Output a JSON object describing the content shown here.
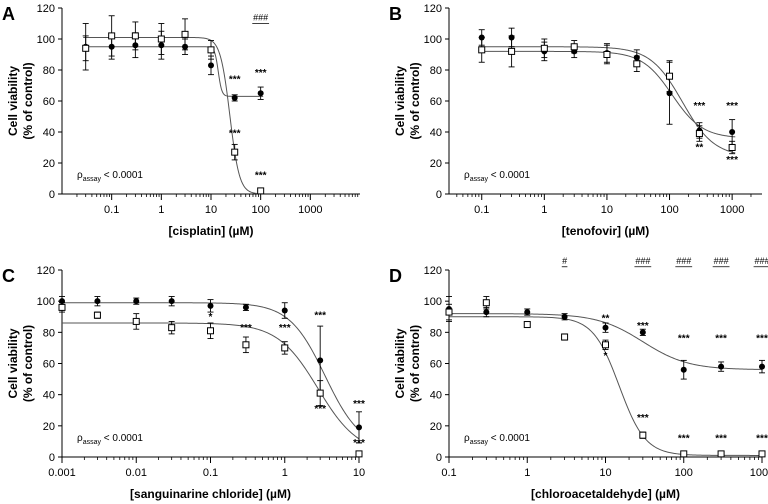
{
  "figure": {
    "panels": [
      {
        "letter": "A",
        "pvalue": {
          "rho": "ρ",
          "sub": "assay",
          "rest": " < 0.0001"
        },
        "chart_data": {
          "type": "scatter",
          "xscale": "log",
          "xlabel": "[cisplatin] (µM)",
          "ylabel_line1": "Cell viability",
          "ylabel_line2": "(% of control)",
          "xlim": [
            0.01,
            10000
          ],
          "ylim": [
            0,
            120
          ],
          "xticks": [
            0.1,
            1,
            10,
            100,
            1000
          ],
          "xtick_labels": [
            "0.1",
            "1",
            "10",
            "100",
            "1000"
          ],
          "yticks": [
            0,
            20,
            40,
            60,
            80,
            100,
            120
          ],
          "ytick_labels": [
            "0",
            "20",
            "40",
            "60",
            "80",
            "100",
            "120"
          ],
          "series": [
            {
              "name": "filled",
              "marker": "filled-circle",
              "x": [
                0.03,
                0.1,
                0.3,
                1,
                3,
                10,
                30,
                100
              ],
              "y": [
                95,
                95,
                96,
                96,
                95,
                83,
                62,
                65
              ],
              "err": [
                15,
                8,
                8,
                9,
                5,
                6,
                2,
                4
              ],
              "fit": {
                "top": 95,
                "bottom": 63,
                "ec50": 14,
                "hill": 12
              }
            },
            {
              "name": "open",
              "marker": "open-square",
              "x": [
                0.03,
                0.1,
                0.3,
                1,
                3,
                10,
                30,
                100
              ],
              "y": [
                94,
                102,
                102,
                100,
                103,
                93,
                27,
                2
              ],
              "err": [
                8,
                13,
                9,
                10,
                10,
                6,
                5,
                1
              ],
              "fit": {
                "top": 101,
                "bottom": 0,
                "ec50": 24,
                "hill": 4.5
              }
            }
          ],
          "annotations": [
            {
              "x": 30,
              "y": 72,
              "text": "***"
            },
            {
              "x": 100,
              "y": 76,
              "text": "***"
            },
            {
              "x": 30,
              "y": 37,
              "text": "***"
            },
            {
              "x": 100,
              "y": 10,
              "text": "***"
            },
            {
              "x": 100,
              "y": 112,
              "text": "###",
              "underline": true
            }
          ]
        }
      },
      {
        "letter": "B",
        "pvalue": {
          "rho": "ρ",
          "sub": "assay",
          "rest": " < 0.0001"
        },
        "chart_data": {
          "type": "scatter",
          "xscale": "log",
          "xlabel": "[tenofovir] (µM)",
          "ylabel_line1": "Cell viability",
          "ylabel_line2": "(% of control)",
          "xlim": [
            0.03,
            3000
          ],
          "ylim": [
            0,
            120
          ],
          "xticks": [
            0.1,
            1,
            10,
            100,
            1000
          ],
          "xtick_labels": [
            "0.1",
            "1",
            "10",
            "100",
            "1000"
          ],
          "yticks": [
            0,
            20,
            40,
            60,
            80,
            100,
            120
          ],
          "ytick_labels": [
            "0",
            "20",
            "40",
            "60",
            "80",
            "100",
            "120"
          ],
          "series": [
            {
              "name": "filled",
              "marker": "filled-circle",
              "x": [
                0.1,
                0.3,
                1,
                3,
                10,
                30,
                100,
                300,
                1000
              ],
              "y": [
                101,
                101,
                92,
                92,
                91,
                88,
                65,
                41,
                40
              ],
              "err": [
                5,
                6,
                6,
                4,
                6,
                5,
                20,
                5,
                8
              ],
              "fit": {
                "top": 92,
                "bottom": 36,
                "ec50": 110,
                "hill": 1.8
              }
            },
            {
              "name": "open",
              "marker": "open-square",
              "x": [
                0.1,
                0.3,
                1,
                3,
                10,
                30,
                100,
                300,
                1000
              ],
              "y": [
                93,
                92,
                94,
                95,
                90,
                84,
                76,
                39,
                30
              ],
              "err": [
                8,
                10,
                6,
                4,
                6,
                5,
                10,
                5,
                4
              ],
              "fit": {
                "top": 95,
                "bottom": 24,
                "ec50": 160,
                "hill": 1.7
              }
            }
          ],
          "annotations": [
            {
              "x": 300,
              "y": 55,
              "text": "***"
            },
            {
              "x": 1000,
              "y": 55,
              "text": "***"
            },
            {
              "x": 300,
              "y": 28,
              "text": "**"
            },
            {
              "x": 1000,
              "y": 20,
              "text": "***"
            }
          ]
        }
      },
      {
        "letter": "C",
        "pvalue": {
          "rho": "ρ",
          "sub": "assay",
          "rest": " < 0.0001"
        },
        "chart_data": {
          "type": "scatter",
          "xscale": "log",
          "xlabel": "[sanguinarine chloride] (µM)",
          "ylabel_line1": "Cell viability",
          "ylabel_line2": "(% of control)",
          "xlim": [
            0.001,
            10
          ],
          "ylim": [
            0,
            120
          ],
          "xticks": [
            0.001,
            0.01,
            0.1,
            1,
            10
          ],
          "xtick_labels": [
            "0.001",
            "0.01",
            "0.1",
            "1",
            "10"
          ],
          "yticks": [
            0,
            20,
            40,
            60,
            80,
            100,
            120
          ],
          "ytick_labels": [
            "0",
            "20",
            "40",
            "60",
            "80",
            "100",
            "120"
          ],
          "series": [
            {
              "name": "filled",
              "marker": "filled-circle",
              "x": [
                0.001,
                0.003,
                0.01,
                0.03,
                0.1,
                0.3,
                1,
                3,
                10
              ],
              "y": [
                100,
                100,
                100,
                100,
                97,
                96,
                94,
                62,
                19
              ],
              "err": [
                3,
                3,
                2,
                3,
                4,
                2,
                5,
                22,
                10
              ],
              "fit": {
                "top": 99,
                "bottom": 5,
                "ec50": 3.5,
                "hill": 1.8
              }
            },
            {
              "name": "open",
              "marker": "open-square",
              "x": [
                0.001,
                0.003,
                0.01,
                0.03,
                0.1,
                0.3,
                1,
                3,
                10
              ],
              "y": [
                96,
                91,
                87,
                83,
                81,
                72,
                70,
                41,
                2
              ],
              "err": [
                3,
                2,
                5,
                4,
                5,
                5,
                4,
                8,
                1
              ],
              "fit": {
                "top": 86,
                "bottom": 2,
                "ec50": 2.8,
                "hill": 1.6
              }
            }
          ],
          "annotations": [
            {
              "x": 0.1,
              "y": 88,
              "text": "*"
            },
            {
              "x": 0.3,
              "y": 81,
              "text": "***"
            },
            {
              "x": 1,
              "y": 81,
              "text": "***"
            },
            {
              "x": 3,
              "y": 89,
              "text": "***"
            },
            {
              "x": 3,
              "y": 29,
              "text": "***"
            },
            {
              "x": 10,
              "y": 32,
              "text": "***"
            },
            {
              "x": 10,
              "y": 7,
              "text": "***"
            }
          ]
        }
      },
      {
        "letter": "D",
        "pvalue": {
          "rho": "ρ",
          "sub": "assay",
          "rest": " < 0.0001"
        },
        "chart_data": {
          "type": "scatter",
          "xscale": "log",
          "xlabel": "[chloroacetaldehyde] (µM)",
          "ylabel_line1": "Cell viability",
          "ylabel_line2": "(% of control)",
          "xlim": [
            0.1,
            1000
          ],
          "ylim": [
            0,
            120
          ],
          "xticks": [
            0.1,
            1,
            10,
            100,
            1000
          ],
          "xtick_labels": [
            "0.1",
            "1",
            "10",
            "100",
            "1000"
          ],
          "yticks": [
            0,
            20,
            40,
            60,
            80,
            100,
            120
          ],
          "ytick_labels": [
            "0",
            "20",
            "40",
            "60",
            "80",
            "100",
            "120"
          ],
          "series": [
            {
              "name": "filled",
              "marker": "filled-circle",
              "x": [
                0.1,
                0.3,
                1,
                3,
                10,
                30,
                100,
                300,
                1000
              ],
              "y": [
                95,
                93,
                93,
                90,
                83,
                80,
                56,
                58,
                58
              ],
              "err": [
                8,
                3,
                2,
                2,
                3,
                2,
                6,
                3,
                4
              ],
              "fit": {
                "top": 92,
                "bottom": 56,
                "ec50": 30,
                "hill": 1.5
              }
            },
            {
              "name": "open",
              "marker": "open-square",
              "x": [
                0.1,
                0.3,
                1,
                3,
                10,
                30,
                100,
                300,
                1000
              ],
              "y": [
                93,
                99,
                85,
                77,
                72,
                14,
                2,
                2,
                2
              ],
              "err": [
                5,
                4,
                1,
                2,
                3,
                2,
                1,
                1,
                1
              ],
              "fit": {
                "top": 90,
                "bottom": 1,
                "ec50": 15,
                "hill": 2.6
              }
            }
          ],
          "annotations": [
            {
              "x": 10,
              "y": 87,
              "text": "**"
            },
            {
              "x": 10,
              "y": 63,
              "text": "*"
            },
            {
              "x": 30,
              "y": 82,
              "text": "***"
            },
            {
              "x": 30,
              "y": 23,
              "text": "***"
            },
            {
              "x": 100,
              "y": 74,
              "text": "***"
            },
            {
              "x": 300,
              "y": 74,
              "text": "***"
            },
            {
              "x": 1000,
              "y": 74,
              "text": "***"
            },
            {
              "x": 100,
              "y": 10,
              "text": "***"
            },
            {
              "x": 300,
              "y": 10,
              "text": "***"
            },
            {
              "x": 1000,
              "y": 10,
              "text": "***"
            },
            {
              "x": 3,
              "y": 124,
              "text": "#",
              "underline": true
            },
            {
              "x": 30,
              "y": 124,
              "text": "###",
              "underline": true
            },
            {
              "x": 100,
              "y": 124,
              "text": "###",
              "underline": true
            },
            {
              "x": 300,
              "y": 124,
              "text": "###",
              "underline": true
            },
            {
              "x": 1000,
              "y": 124,
              "text": "###",
              "underline": true
            }
          ]
        }
      }
    ]
  }
}
